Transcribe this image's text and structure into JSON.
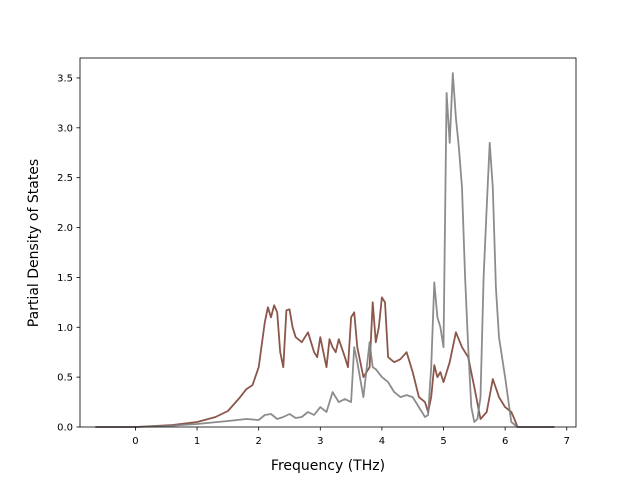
{
  "chart_data": {
    "type": "line",
    "xlabel": "Frequency (THz)",
    "ylabel": "Partial Density of States",
    "xlim": [
      -0.9,
      7.15
    ],
    "ylim": [
      0,
      3.7
    ],
    "xticks": [
      0,
      1,
      2,
      3,
      4,
      5,
      6,
      7
    ],
    "yticks": [
      0.0,
      0.5,
      1.0,
      1.5,
      2.0,
      2.5,
      3.0,
      3.5
    ],
    "ytick_labels": [
      "0.0",
      "0.5",
      "1.0",
      "1.5",
      "2.0",
      "2.5",
      "3.0",
      "3.5"
    ],
    "grid": false,
    "series": [
      {
        "color": "#8c564b",
        "x": [
          -0.65,
          0.0,
          0.3,
          0.6,
          1.0,
          1.3,
          1.5,
          1.7,
          1.8,
          1.9,
          2.0,
          2.1,
          2.15,
          2.2,
          2.25,
          2.3,
          2.35,
          2.4,
          2.45,
          2.5,
          2.55,
          2.6,
          2.7,
          2.8,
          2.9,
          2.95,
          3.0,
          3.1,
          3.15,
          3.2,
          3.25,
          3.3,
          3.4,
          3.45,
          3.5,
          3.55,
          3.6,
          3.7,
          3.8,
          3.85,
          3.9,
          3.95,
          4.0,
          4.05,
          4.1,
          4.2,
          4.3,
          4.4,
          4.5,
          4.6,
          4.7,
          4.75,
          4.8,
          4.85,
          4.9,
          4.95,
          5.0,
          5.1,
          5.2,
          5.3,
          5.4,
          5.5,
          5.6,
          5.7,
          5.8,
          5.9,
          6.0,
          6.1,
          6.15,
          6.2,
          6.8
        ],
        "y": [
          0.0,
          0.0,
          0.01,
          0.02,
          0.05,
          0.1,
          0.16,
          0.3,
          0.38,
          0.42,
          0.6,
          1.05,
          1.2,
          1.1,
          1.22,
          1.15,
          0.75,
          0.6,
          1.17,
          1.18,
          1.0,
          0.9,
          0.85,
          0.95,
          0.75,
          0.7,
          0.9,
          0.6,
          0.88,
          0.8,
          0.75,
          0.88,
          0.7,
          0.6,
          1.1,
          1.15,
          0.8,
          0.5,
          0.6,
          1.25,
          0.85,
          1.0,
          1.3,
          1.25,
          0.7,
          0.65,
          0.68,
          0.75,
          0.55,
          0.3,
          0.25,
          0.15,
          0.3,
          0.62,
          0.5,
          0.55,
          0.45,
          0.65,
          0.95,
          0.8,
          0.7,
          0.4,
          0.08,
          0.15,
          0.48,
          0.3,
          0.2,
          0.15,
          0.08,
          0.0,
          0.0
        ]
      },
      {
        "color": "#7f7f7f",
        "x": [
          -0.65,
          0.0,
          0.5,
          1.0,
          1.5,
          1.8,
          2.0,
          2.1,
          2.2,
          2.3,
          2.4,
          2.5,
          2.6,
          2.7,
          2.8,
          2.9,
          3.0,
          3.1,
          3.2,
          3.3,
          3.4,
          3.5,
          3.55,
          3.6,
          3.7,
          3.8,
          3.85,
          3.9,
          4.0,
          4.1,
          4.2,
          4.3,
          4.4,
          4.5,
          4.6,
          4.7,
          4.75,
          4.8,
          4.85,
          4.9,
          4.95,
          5.0,
          5.05,
          5.1,
          5.15,
          5.2,
          5.25,
          5.3,
          5.35,
          5.4,
          5.45,
          5.5,
          5.55,
          5.6,
          5.65,
          5.7,
          5.75,
          5.8,
          5.85,
          5.9,
          6.0,
          6.1,
          6.2,
          6.8
        ],
        "y": [
          0.0,
          0.0,
          0.01,
          0.03,
          0.06,
          0.08,
          0.07,
          0.12,
          0.13,
          0.08,
          0.1,
          0.13,
          0.09,
          0.1,
          0.15,
          0.12,
          0.2,
          0.15,
          0.35,
          0.25,
          0.28,
          0.25,
          0.8,
          0.65,
          0.3,
          0.85,
          0.6,
          0.58,
          0.5,
          0.45,
          0.35,
          0.3,
          0.32,
          0.3,
          0.2,
          0.1,
          0.12,
          0.6,
          1.45,
          1.1,
          1.0,
          0.8,
          3.35,
          2.85,
          3.55,
          3.1,
          2.8,
          2.4,
          1.5,
          0.8,
          0.2,
          0.05,
          0.08,
          0.3,
          1.5,
          2.2,
          2.85,
          2.4,
          1.4,
          0.9,
          0.5,
          0.05,
          0.0,
          0.0
        ]
      }
    ]
  }
}
